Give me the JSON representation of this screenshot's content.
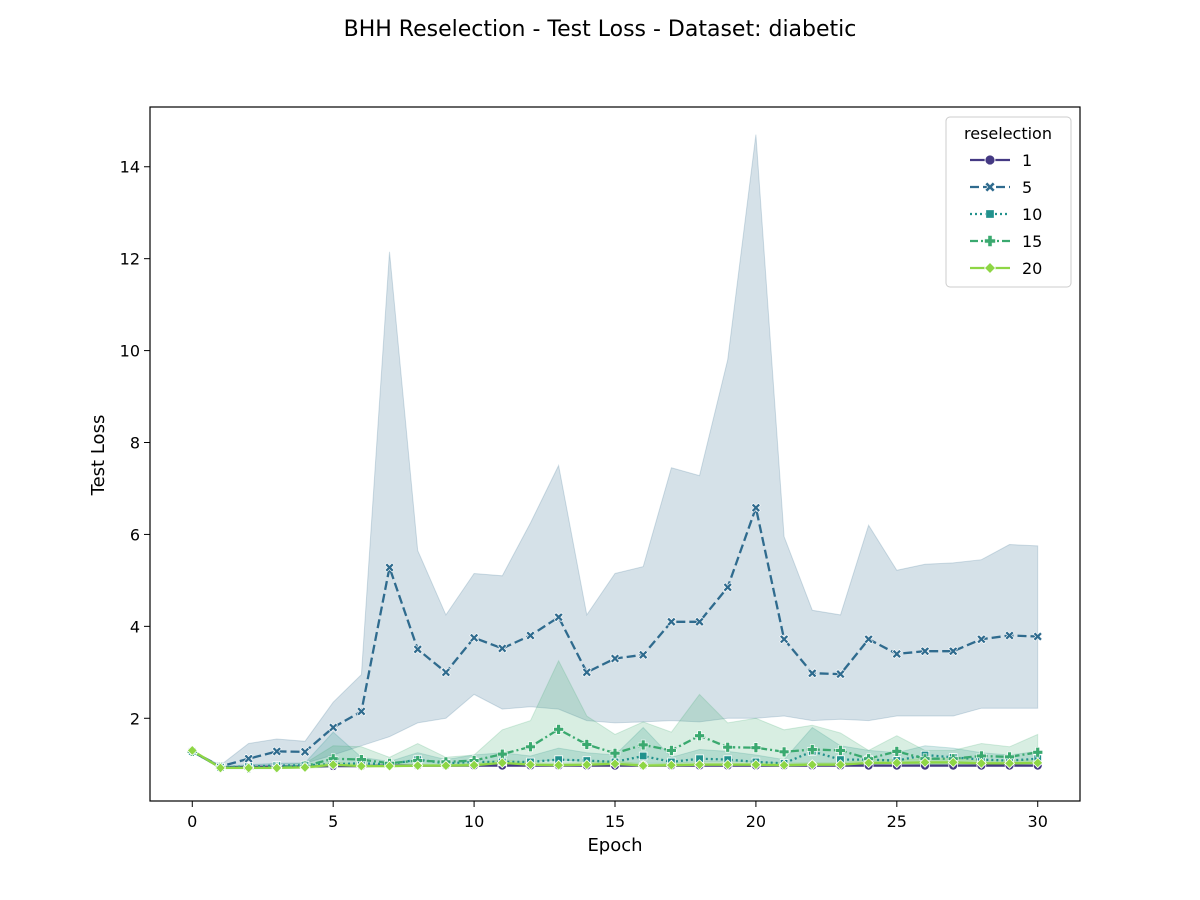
{
  "chart_data": {
    "type": "line",
    "title": "BHH Reselection - Test Loss - Dataset: diabetic",
    "xlabel": "Epoch",
    "ylabel": "Test Loss",
    "xlim": [
      -1.5,
      31.5
    ],
    "ylim": [
      0.2,
      15.3
    ],
    "xticks": [
      0,
      5,
      10,
      15,
      20,
      25,
      30
    ],
    "yticks": [
      2,
      4,
      6,
      8,
      10,
      12,
      14
    ],
    "grid": false,
    "legend": {
      "title": "reselection",
      "placement": "top-right"
    },
    "x": [
      0,
      1,
      2,
      3,
      4,
      5,
      6,
      7,
      8,
      9,
      10,
      11,
      12,
      13,
      14,
      15,
      16,
      17,
      18,
      19,
      20,
      21,
      22,
      23,
      24,
      25,
      26,
      27,
      28,
      29,
      30
    ],
    "series": [
      {
        "name": "1",
        "color": "#443983",
        "dash": "",
        "marker": "circle",
        "values": [
          1.28,
          0.93,
          0.94,
          0.95,
          0.95,
          0.96,
          0.96,
          0.97,
          0.97,
          0.97,
          0.97,
          0.97,
          0.97,
          0.97,
          0.97,
          0.97,
          0.97,
          0.97,
          0.97,
          0.97,
          0.97,
          0.97,
          0.97,
          0.97,
          0.97,
          0.97,
          0.97,
          0.97,
          0.97,
          0.97,
          0.97
        ],
        "lower": [
          1.27,
          0.92,
          0.93,
          0.94,
          0.94,
          0.95,
          0.95,
          0.96,
          0.96,
          0.96,
          0.96,
          0.96,
          0.96,
          0.96,
          0.96,
          0.96,
          0.96,
          0.96,
          0.96,
          0.96,
          0.96,
          0.96,
          0.96,
          0.96,
          0.96,
          0.96,
          0.96,
          0.96,
          0.96,
          0.96,
          0.96
        ],
        "upper": [
          1.29,
          0.94,
          0.95,
          0.96,
          0.96,
          0.97,
          0.97,
          0.98,
          0.98,
          0.98,
          0.98,
          0.98,
          0.98,
          0.98,
          0.98,
          0.98,
          0.98,
          0.98,
          0.98,
          0.98,
          0.98,
          0.98,
          0.98,
          0.98,
          0.98,
          0.98,
          0.98,
          0.98,
          0.98,
          0.98,
          0.98
        ]
      },
      {
        "name": "5",
        "color": "#2f6b8e",
        "dash": "9,4",
        "marker": "x",
        "values": [
          1.28,
          0.95,
          1.12,
          1.28,
          1.27,
          1.8,
          2.15,
          5.28,
          3.5,
          3.0,
          3.75,
          3.52,
          3.8,
          4.2,
          3.0,
          3.3,
          3.38,
          4.1,
          4.1,
          4.85,
          6.58,
          3.72,
          2.98,
          2.96,
          3.72,
          3.4,
          3.46,
          3.46,
          3.72,
          3.8,
          3.78
        ],
        "lower": [
          1.27,
          0.92,
          0.98,
          1.0,
          1.02,
          1.2,
          1.4,
          1.6,
          1.9,
          2.0,
          2.52,
          2.2,
          2.25,
          2.2,
          1.95,
          1.9,
          1.92,
          1.95,
          1.92,
          2.0,
          2.0,
          2.05,
          1.95,
          1.98,
          1.95,
          2.05,
          2.05,
          2.05,
          2.22,
          2.22,
          2.22
        ],
        "upper": [
          1.29,
          0.98,
          1.45,
          1.55,
          1.5,
          2.35,
          2.95,
          12.15,
          5.65,
          4.25,
          5.15,
          5.1,
          6.25,
          7.5,
          4.25,
          5.15,
          5.3,
          7.45,
          7.28,
          9.8,
          14.7,
          5.95,
          4.35,
          4.25,
          6.2,
          5.22,
          5.35,
          5.38,
          5.45,
          5.78,
          5.75
        ]
      },
      {
        "name": "10",
        "color": "#21918c",
        "dash": "2,3",
        "marker": "square",
        "values": [
          1.28,
          0.93,
          0.95,
          0.97,
          0.98,
          1.0,
          1.02,
          1.0,
          1.1,
          1.02,
          1.05,
          1.05,
          1.05,
          1.1,
          1.08,
          1.05,
          1.18,
          1.05,
          1.12,
          1.1,
          1.05,
          1.02,
          1.28,
          1.1,
          1.1,
          1.08,
          1.2,
          1.15,
          1.1,
          1.08,
          1.12
        ],
        "lower": [
          1.27,
          0.91,
          0.92,
          0.94,
          0.95,
          0.95,
          0.96,
          0.96,
          0.98,
          0.97,
          0.98,
          0.98,
          0.98,
          0.98,
          0.98,
          0.98,
          0.98,
          0.98,
          0.98,
          0.98,
          0.98,
          0.98,
          0.98,
          0.98,
          0.98,
          0.98,
          0.98,
          0.98,
          0.98,
          0.98,
          0.98
        ],
        "upper": [
          1.29,
          0.96,
          0.99,
          1.02,
          1.03,
          1.7,
          1.15,
          1.06,
          1.25,
          1.1,
          1.2,
          1.25,
          1.18,
          1.35,
          1.25,
          1.2,
          1.8,
          1.15,
          1.32,
          1.28,
          1.2,
          1.1,
          1.8,
          1.4,
          1.3,
          1.25,
          1.4,
          1.35,
          1.25,
          1.2,
          1.28
        ]
      },
      {
        "name": "15",
        "color": "#3aa96f",
        "dash": "8,3,2,3",
        "marker": "plus",
        "values": [
          1.28,
          0.93,
          0.92,
          0.93,
          0.96,
          1.12,
          1.1,
          1.02,
          1.08,
          1.05,
          1.08,
          1.22,
          1.38,
          1.76,
          1.43,
          1.24,
          1.42,
          1.3,
          1.62,
          1.37,
          1.36,
          1.27,
          1.32,
          1.3,
          1.12,
          1.28,
          1.12,
          1.12,
          1.18,
          1.16,
          1.26
        ],
        "lower": [
          1.27,
          0.9,
          0.9,
          0.9,
          0.92,
          0.95,
          0.96,
          0.97,
          0.98,
          0.98,
          0.98,
          1.0,
          1.05,
          1.1,
          1.05,
          1.02,
          1.02,
          1.02,
          1.05,
          1.05,
          1.05,
          1.02,
          1.02,
          1.02,
          1.0,
          1.02,
          1.0,
          1.0,
          1.0,
          1.0,
          1.02
        ],
        "upper": [
          1.29,
          0.96,
          0.95,
          0.97,
          1.02,
          1.4,
          1.38,
          1.15,
          1.45,
          1.15,
          1.2,
          1.75,
          1.95,
          3.25,
          2.05,
          1.65,
          1.92,
          1.7,
          2.52,
          1.9,
          2.0,
          1.75,
          1.85,
          1.68,
          1.3,
          1.62,
          1.3,
          1.3,
          1.45,
          1.38,
          1.65
        ]
      },
      {
        "name": "20",
        "color": "#8ed645",
        "dash": "",
        "marker": "diamond",
        "values": [
          1.3,
          0.92,
          0.92,
          0.92,
          0.93,
          0.99,
          0.96,
          0.96,
          0.97,
          0.97,
          0.98,
          1.03,
          0.99,
          0.98,
          0.99,
          1.01,
          0.97,
          0.98,
          0.99,
          0.99,
          0.99,
          0.98,
          0.99,
          0.99,
          1.03,
          1.03,
          1.04,
          1.04,
          1.02,
          1.02,
          1.03
        ],
        "lower": [
          1.29,
          0.91,
          0.91,
          0.91,
          0.91,
          0.94,
          0.94,
          0.94,
          0.95,
          0.95,
          0.96,
          0.97,
          0.96,
          0.96,
          0.96,
          0.96,
          0.95,
          0.95,
          0.96,
          0.96,
          0.96,
          0.95,
          0.96,
          0.96,
          0.97,
          0.97,
          0.97,
          0.97,
          0.97,
          0.97,
          0.97
        ],
        "upper": [
          1.31,
          0.93,
          0.93,
          0.94,
          0.95,
          1.05,
          1.0,
          1.0,
          1.0,
          1.0,
          1.02,
          1.1,
          1.04,
          1.02,
          1.04,
          1.08,
          1.0,
          1.02,
          1.03,
          1.03,
          1.03,
          1.02,
          1.03,
          1.03,
          1.1,
          1.1,
          1.12,
          1.12,
          1.08,
          1.08,
          1.1
        ]
      }
    ]
  }
}
